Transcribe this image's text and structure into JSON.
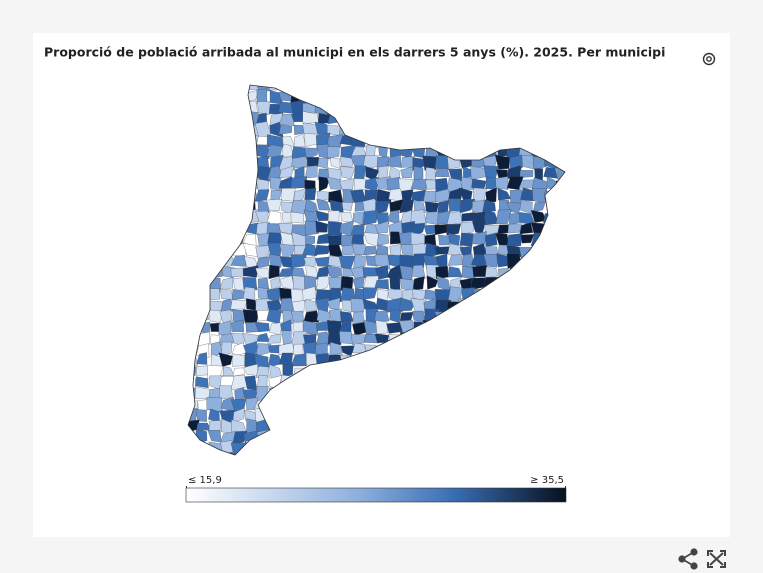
{
  "header": {
    "title": "Proporció de població arribada al municipi en els darrers 5 anys (%). 2025. Per municipi"
  },
  "legend": {
    "min": {
      "value": 15.9,
      "label": "≤ 15,9"
    },
    "max": {
      "value": 35.5,
      "label": "≥ 35,5"
    }
  }
}
